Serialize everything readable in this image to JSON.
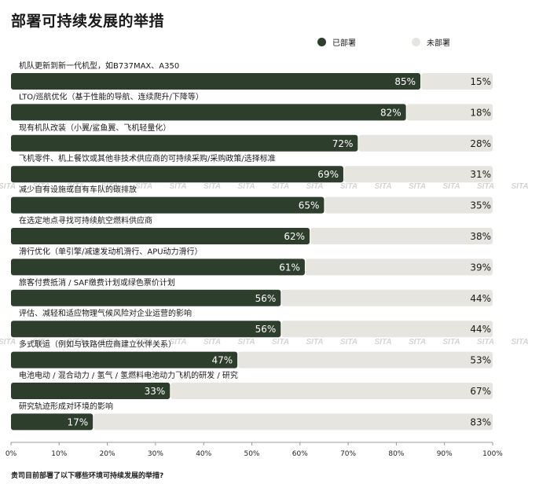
{
  "title": "部署可持续发展的举措",
  "footer_question": "贵司目前部署了以下哪些环境可持续发展的举措?",
  "watermark_text": "SITA",
  "colors": {
    "deployed": "#2d3e2d",
    "not_deployed": "#e6e5df",
    "axis": "#999999"
  },
  "chart_data": {
    "type": "bar",
    "orientation": "horizontal",
    "stacked": true,
    "title": "部署可持续发展的举措",
    "xlabel": "",
    "ylabel": "",
    "xlim": [
      0,
      100
    ],
    "x_ticks": [
      "0%",
      "10%",
      "20%",
      "30%",
      "40%",
      "50%",
      "60%",
      "70%",
      "80%",
      "90%",
      "100%"
    ],
    "legend": {
      "placement": "top-right"
    },
    "categories": [
      "机队更新到新一代机型，如B737MAX、A350",
      "LTO/巡航优化（基于性能的导航、连续爬升/下降等）",
      "现有机队改装（小翼/鲨鱼翼、飞机轻量化）",
      "飞机零件、机上餐饮或其他非技术供应商的可持续采购/采购政策/选择标准",
      "减少自有设施或自有车队的碳排放",
      "在选定地点寻找可持续航空燃料供应商",
      "滑行优化（单引擎/减速发动机滑行、APU动力滑行）",
      "旅客付费抵消 / SAF缴费计划或绿色票价计划",
      "评估、减轻和适应物理气候风险对企业运营的影响",
      "多式联运（例如与铁路供应商建立伙伴关系）",
      "电池电动 / 混合动力 / 氢气 / 氢燃料电池动力飞机的研发 / 研究",
      "研究轨迹形成对环境的影响"
    ],
    "series": [
      {
        "name": "已部署",
        "values": [
          85,
          82,
          72,
          69,
          65,
          62,
          61,
          56,
          56,
          47,
          33,
          17
        ],
        "labels": [
          "85%",
          "82%",
          "72%",
          "69%",
          "65%",
          "62%",
          "61%",
          "56%",
          "56%",
          "47%",
          "33%",
          "17%"
        ]
      },
      {
        "name": "未部署",
        "values": [
          15,
          18,
          28,
          31,
          35,
          38,
          39,
          44,
          44,
          53,
          67,
          83
        ],
        "labels": [
          "15%",
          "18%",
          "28%",
          "31%",
          "35%",
          "38%",
          "39%",
          "44%",
          "44%",
          "53%",
          "67%",
          "83%"
        ]
      }
    ]
  }
}
